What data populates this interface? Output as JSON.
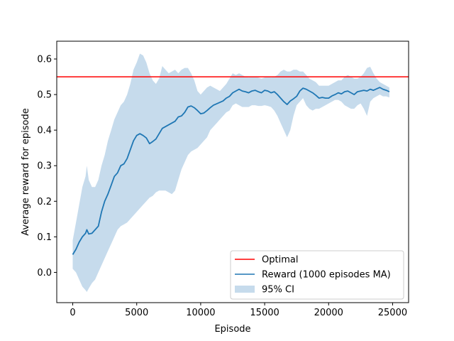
{
  "chart_data": {
    "type": "line",
    "xlabel": "Episode",
    "ylabel": "Average reward for episode",
    "xlim": [
      -1250,
      26250
    ],
    "ylim": [
      -0.085,
      0.65
    ],
    "xticks": [
      0,
      5000,
      10000,
      15000,
      20000,
      25000
    ],
    "xtick_labels": [
      "0",
      "5000",
      "10000",
      "15000",
      "20000",
      "25000"
    ],
    "yticks": [
      0.0,
      0.1,
      0.2,
      0.3,
      0.4,
      0.5,
      0.6
    ],
    "ytick_labels": [
      "0.0",
      "0.1",
      "0.2",
      "0.3",
      "0.4",
      "0.5",
      "0.6"
    ],
    "grid": false,
    "legend_position": "lower-right",
    "colors": {
      "optimal": "#ff0000",
      "reward": "#1f77b4",
      "ci": "#c6dbec"
    },
    "optimal": {
      "name": "Optimal",
      "y": 0.55
    },
    "series": [
      {
        "name": "Reward (1000 episodes MA)",
        "x": [
          0,
          250,
          500,
          750,
          1000,
          1100,
          1250,
          1500,
          1750,
          2000,
          2250,
          2500,
          2750,
          3000,
          3250,
          3500,
          3750,
          4000,
          4250,
          4500,
          4750,
          5000,
          5250,
          5500,
          5750,
          6000,
          6250,
          6500,
          6750,
          7000,
          7250,
          7500,
          7750,
          8000,
          8250,
          8500,
          8750,
          9000,
          9250,
          9500,
          9750,
          10000,
          10250,
          10500,
          10750,
          11000,
          11250,
          11500,
          11750,
          12000,
          12250,
          12500,
          12750,
          13000,
          13250,
          13500,
          13750,
          14000,
          14250,
          14500,
          14750,
          15000,
          15250,
          15500,
          15750,
          16000,
          16250,
          16500,
          16750,
          17000,
          17250,
          17500,
          17750,
          18000,
          18250,
          18500,
          18750,
          19000,
          19250,
          19500,
          19750,
          20000,
          20250,
          20500,
          20750,
          21000,
          21250,
          21500,
          21750,
          22000,
          22250,
          22500,
          22750,
          23000,
          23250,
          23500,
          23750,
          24000,
          24250,
          24500,
          24750
        ],
        "values": [
          0.05,
          0.065,
          0.085,
          0.1,
          0.11,
          0.12,
          0.108,
          0.11,
          0.12,
          0.13,
          0.17,
          0.2,
          0.22,
          0.245,
          0.27,
          0.28,
          0.3,
          0.305,
          0.32,
          0.345,
          0.37,
          0.385,
          0.39,
          0.385,
          0.378,
          0.362,
          0.368,
          0.375,
          0.39,
          0.405,
          0.41,
          0.415,
          0.42,
          0.425,
          0.437,
          0.44,
          0.45,
          0.465,
          0.468,
          0.463,
          0.455,
          0.446,
          0.448,
          0.455,
          0.463,
          0.47,
          0.474,
          0.478,
          0.482,
          0.49,
          0.495,
          0.505,
          0.51,
          0.515,
          0.51,
          0.508,
          0.505,
          0.51,
          0.512,
          0.508,
          0.505,
          0.512,
          0.51,
          0.505,
          0.508,
          0.5,
          0.49,
          0.48,
          0.472,
          0.482,
          0.488,
          0.495,
          0.51,
          0.518,
          0.515,
          0.51,
          0.505,
          0.498,
          0.49,
          0.492,
          0.49,
          0.49,
          0.496,
          0.5,
          0.505,
          0.502,
          0.508,
          0.51,
          0.505,
          0.5,
          0.508,
          0.51,
          0.512,
          0.51,
          0.515,
          0.512,
          0.516,
          0.52,
          0.515,
          0.512,
          0.508
        ]
      }
    ],
    "ci": {
      "name": "95% CI",
      "x": [
        0,
        250,
        500,
        750,
        1000,
        1100,
        1250,
        1500,
        1750,
        2000,
        2250,
        2500,
        2750,
        3000,
        3250,
        3500,
        3750,
        4000,
        4250,
        4500,
        4750,
        5000,
        5250,
        5500,
        5750,
        6000,
        6250,
        6500,
        6750,
        7000,
        7250,
        7500,
        7750,
        8000,
        8250,
        8500,
        8750,
        9000,
        9250,
        9500,
        9750,
        10000,
        10250,
        10500,
        10750,
        11000,
        11250,
        11500,
        11750,
        12000,
        12250,
        12500,
        12750,
        13000,
        13250,
        13500,
        13750,
        14000,
        14250,
        14500,
        14750,
        15000,
        15250,
        15500,
        15750,
        16000,
        16250,
        16500,
        16750,
        17000,
        17250,
        17500,
        17750,
        18000,
        18250,
        18500,
        18750,
        19000,
        19250,
        19500,
        19750,
        20000,
        20250,
        20500,
        20750,
        21000,
        21250,
        21500,
        21750,
        22000,
        22250,
        22500,
        22750,
        23000,
        23250,
        23500,
        23750,
        24000,
        24250,
        24500,
        24750
      ],
      "lower": [
        0.01,
        0.0,
        -0.02,
        -0.04,
        -0.05,
        -0.055,
        -0.045,
        -0.03,
        -0.02,
        0.0,
        0.02,
        0.04,
        0.06,
        0.08,
        0.1,
        0.12,
        0.13,
        0.135,
        0.14,
        0.15,
        0.16,
        0.17,
        0.18,
        0.19,
        0.2,
        0.21,
        0.215,
        0.225,
        0.23,
        0.23,
        0.23,
        0.225,
        0.22,
        0.23,
        0.26,
        0.29,
        0.31,
        0.33,
        0.34,
        0.345,
        0.35,
        0.36,
        0.37,
        0.38,
        0.4,
        0.41,
        0.42,
        0.43,
        0.44,
        0.45,
        0.455,
        0.47,
        0.475,
        0.47,
        0.465,
        0.465,
        0.465,
        0.47,
        0.47,
        0.468,
        0.468,
        0.47,
        0.468,
        0.465,
        0.455,
        0.44,
        0.42,
        0.4,
        0.38,
        0.4,
        0.44,
        0.47,
        0.48,
        0.49,
        0.47,
        0.46,
        0.455,
        0.46,
        0.46,
        0.465,
        0.47,
        0.475,
        0.48,
        0.485,
        0.485,
        0.48,
        0.47,
        0.465,
        0.46,
        0.46,
        0.47,
        0.475,
        0.46,
        0.44,
        0.48,
        0.49,
        0.495,
        0.5,
        0.495,
        0.495,
        0.492
      ],
      "upper": [
        0.09,
        0.14,
        0.19,
        0.24,
        0.27,
        0.3,
        0.26,
        0.24,
        0.24,
        0.26,
        0.3,
        0.33,
        0.37,
        0.4,
        0.43,
        0.45,
        0.47,
        0.48,
        0.5,
        0.53,
        0.57,
        0.59,
        0.615,
        0.61,
        0.59,
        0.56,
        0.54,
        0.53,
        0.545,
        0.58,
        0.57,
        0.56,
        0.565,
        0.57,
        0.56,
        0.57,
        0.575,
        0.575,
        0.56,
        0.54,
        0.51,
        0.5,
        0.51,
        0.52,
        0.525,
        0.52,
        0.515,
        0.51,
        0.52,
        0.53,
        0.545,
        0.56,
        0.555,
        0.56,
        0.555,
        0.55,
        0.548,
        0.55,
        0.55,
        0.548,
        0.545,
        0.548,
        0.55,
        0.548,
        0.55,
        0.555,
        0.565,
        0.57,
        0.565,
        0.565,
        0.57,
        0.57,
        0.565,
        0.565,
        0.555,
        0.545,
        0.54,
        0.535,
        0.525,
        0.525,
        0.525,
        0.525,
        0.53,
        0.535,
        0.54,
        0.54,
        0.55,
        0.555,
        0.55,
        0.545,
        0.545,
        0.55,
        0.56,
        0.575,
        0.578,
        0.56,
        0.545,
        0.535,
        0.53,
        0.525,
        0.52
      ]
    }
  }
}
